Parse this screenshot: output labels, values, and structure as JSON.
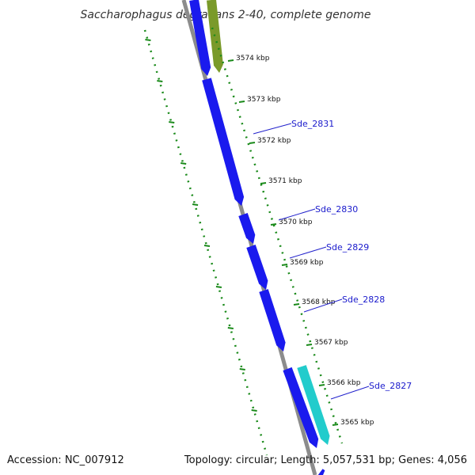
{
  "title": "Saccharophagus degradans 2-40, complete genome",
  "accession_label": "Accession: NC_007912",
  "summary_label": "Topology: circular; Length: 5,057,531 bp; Genes: 4,056",
  "colors": {
    "backbone": "#8c8c8c",
    "gene_forward": "#1a1aee",
    "gene_forward_alt": "#7a9a2a",
    "gene_reverse": "#22cccc",
    "ticks": "#1a8a1a",
    "label_line": "#2222cc"
  },
  "ticks": [
    {
      "kbp": 3574,
      "label": "3574 kbp"
    },
    {
      "kbp": 3573,
      "label": "3573 kbp"
    },
    {
      "kbp": 3572,
      "label": "3572 kbp"
    },
    {
      "kbp": 3571,
      "label": "3571 kbp"
    },
    {
      "kbp": 3570,
      "label": "3570 kbp"
    },
    {
      "kbp": 3569,
      "label": "3569 kbp"
    },
    {
      "kbp": 3568,
      "label": "3568 kbp"
    },
    {
      "kbp": 3567,
      "label": "3567 kbp"
    },
    {
      "kbp": 3566,
      "label": "3566 kbp"
    },
    {
      "kbp": 3565,
      "label": "3565 kbp"
    }
  ],
  "gene_labels": [
    {
      "text": "Sde_2831"
    },
    {
      "text": "Sde_2830"
    },
    {
      "text": "Sde_2829"
    },
    {
      "text": "Sde_2828"
    },
    {
      "text": "Sde_2827"
    }
  ]
}
